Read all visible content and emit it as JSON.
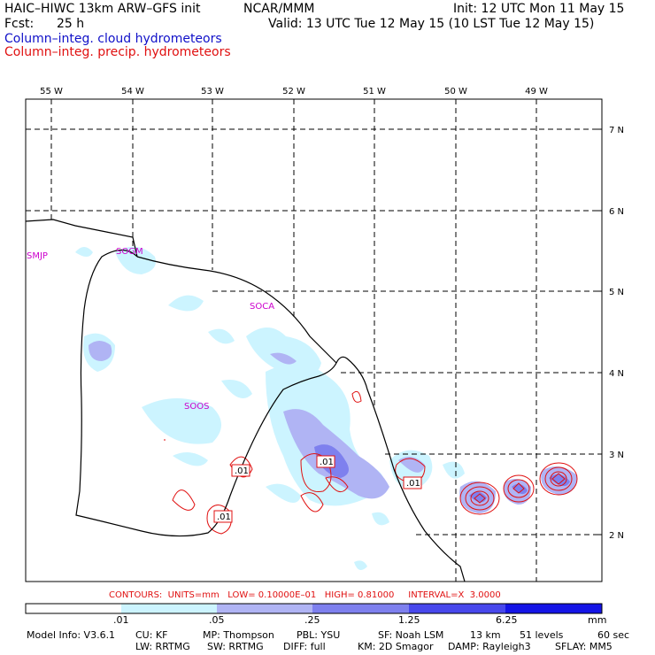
{
  "header": {
    "model": "HAIC–HIWC 13km ARW–GFS init",
    "org": "NCAR/MMM",
    "init": "Init: 12 UTC Mon 11 May 15",
    "fcst_label": "Fcst:",
    "fcst_value": "25 h",
    "valid": "Valid: 13 UTC Tue 12 May 15 (10 LST Tue 12 May 15)",
    "line_cloud": "Column–integ. cloud hydrometeors",
    "line_precip": "Column–integ. precip. hydrometeors"
  },
  "map": {
    "lon_labels": [
      "55 W",
      "54 W",
      "53 W",
      "52 W",
      "51 W",
      "50 W",
      "49 W"
    ],
    "lat_labels": [
      "7 N",
      "6 N",
      "5 N",
      "4 N",
      "3 N",
      "2 N"
    ],
    "stations": [
      "SMJP",
      "SOGM",
      "SOCA",
      "SOOS"
    ],
    "contour_labels": [
      ".01",
      ".01",
      ".01",
      ".01"
    ]
  },
  "contour_info": "CONTOURS:  UNITS=mm   LOW= 0.10000E–01   HIGH= 0.81000     INTERVAL=X  3.0000",
  "colorbar": {
    "labels": [
      ".01",
      ".05",
      ".25",
      "1.25",
      "6.25"
    ],
    "unit": "mm",
    "colors": [
      "#ffffff",
      "#ccf4ff",
      "#b0b4f4",
      "#7e80ee",
      "#4848ec",
      "#1414e6"
    ]
  },
  "footer": {
    "line1": [
      "Model Info: V3.6.1",
      "CU: KF",
      "MP: Thompson",
      "PBL: YSU",
      "SF: Noah LSM",
      "13 km",
      "51 levels",
      "60 sec"
    ],
    "line2": [
      "LW: RRTMG",
      "SW: RRTMG",
      "DIFF: full",
      "KM: 2D Smagor",
      "DAMP: Rayleigh3",
      "SFLAY: MM5"
    ]
  }
}
